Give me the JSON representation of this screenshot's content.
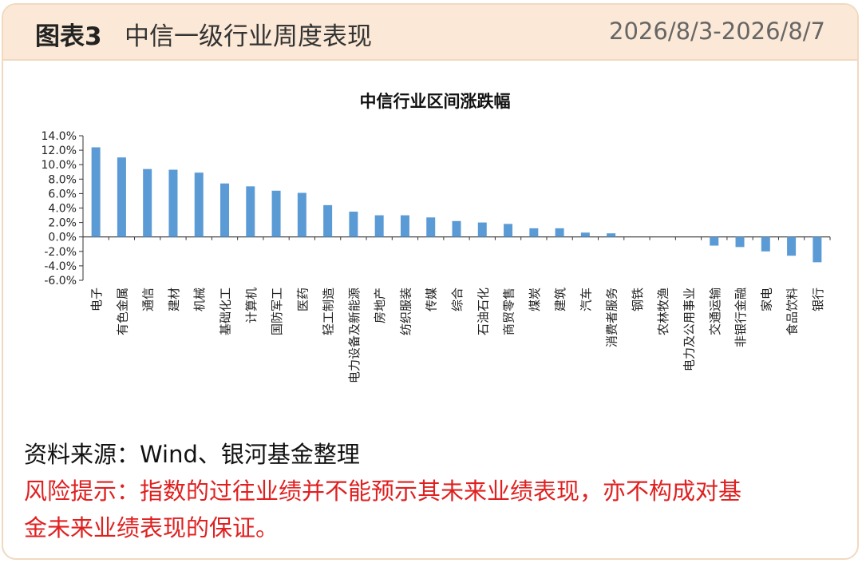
{
  "header": {
    "figure_label": "图表3",
    "title": "中信一级行业周度表现",
    "date_range": "2026/8/3-2026/8/7"
  },
  "chart_data": {
    "type": "bar",
    "title": "中信行业区间涨跌幅",
    "xlabel": "",
    "ylabel": "",
    "ylim": [
      -6.0,
      14.0
    ],
    "yticks": [
      "14.0%",
      "12.0%",
      "10.0%",
      "8.0%",
      "6.0%",
      "4.0%",
      "2.0%",
      "0.0%",
      "-2.0%",
      "-4.0%",
      "-6.0%"
    ],
    "unit": "%",
    "bar_color": "#5b9bd5",
    "grid": false,
    "categories": [
      "电子",
      "有色金属",
      "通信",
      "建材",
      "机械",
      "基础化工",
      "计算机",
      "国防军工",
      "医药",
      "轻工制造",
      "电力设备及新能源",
      "房地产",
      "纺织服装",
      "传媒",
      "综合",
      "石油石化",
      "商贸零售",
      "煤炭",
      "建筑",
      "汽车",
      "消费者服务",
      "钢铁",
      "农林牧渔",
      "电力及公用事业",
      "交通运输",
      "非银行金融",
      "家电",
      "食品饮料",
      "银行"
    ],
    "values": [
      12.4,
      11.0,
      9.4,
      9.3,
      8.9,
      7.4,
      7.0,
      6.4,
      6.1,
      4.4,
      3.5,
      3.0,
      3.0,
      2.7,
      2.2,
      2.0,
      1.8,
      1.2,
      1.2,
      0.6,
      0.5,
      0.0,
      0.0,
      0.0,
      -1.2,
      -1.4,
      -2.0,
      -2.6,
      -3.5
    ]
  },
  "footer": {
    "source": "资料来源：Wind、银河基金整理",
    "risk_line1": "风险提示：指数的过往业绩并不能预示其未来业绩表现，亦不构成对基",
    "risk_line2": "金未来业绩表现的保证。"
  }
}
